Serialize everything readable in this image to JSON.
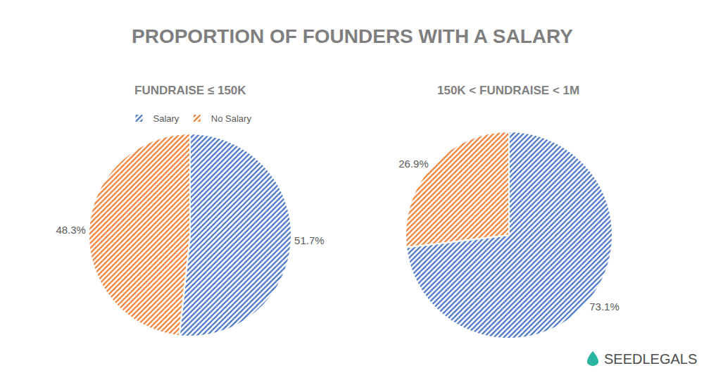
{
  "title": "PROPORTION OF FOUNDERS WITH A SALARY",
  "logo": "SEEDLEGALS",
  "chart_data": [
    {
      "type": "pie",
      "title": "FUNDRAISE ≤ 150K",
      "categories": [
        "Salary",
        "No Salary"
      ],
      "values": [
        51.7,
        48.3
      ],
      "value_labels": [
        "51.7%",
        "48.3%"
      ],
      "colors": [
        "#4472c4",
        "#ed7d31"
      ],
      "data_labels": true,
      "legend": "top"
    },
    {
      "type": "pie",
      "title": "150K < FUNDRAISE < 1M",
      "categories": [
        "Salary",
        "No Salary"
      ],
      "values": [
        73.1,
        26.9
      ],
      "value_labels": [
        "73.1%",
        "26.9%"
      ],
      "colors": [
        "#4472c4",
        "#ed7d31"
      ],
      "data_labels": true,
      "legend": "top"
    }
  ]
}
